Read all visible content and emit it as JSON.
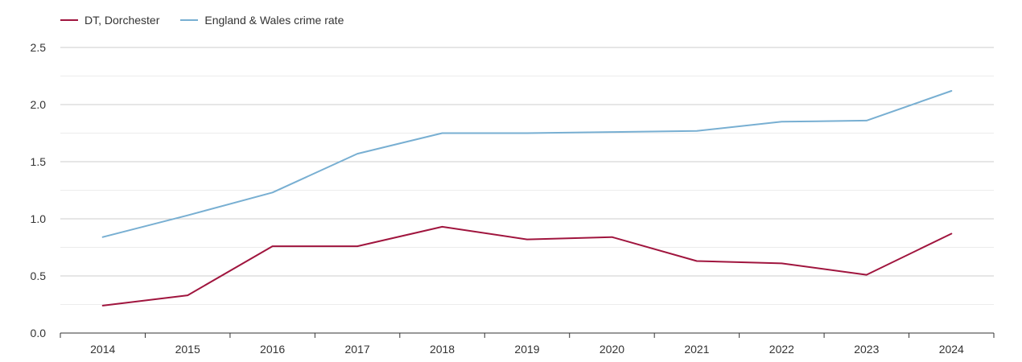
{
  "chart_data": {
    "type": "line",
    "title": "",
    "xlabel": "",
    "ylabel": "",
    "x": [
      "2014",
      "2015",
      "2016",
      "2017",
      "2018",
      "2019",
      "2020",
      "2021",
      "2022",
      "2023",
      "2024"
    ],
    "ylim": [
      0,
      2.5
    ],
    "yticks": [
      "0.0",
      "0.5",
      "1.0",
      "1.5",
      "2.0",
      "2.5"
    ],
    "grid": true,
    "legend_position": "top-left",
    "series": [
      {
        "name": "DT, Dorchester",
        "color": "#a0153e",
        "values": [
          0.24,
          0.33,
          0.76,
          0.76,
          0.93,
          0.82,
          0.84,
          0.63,
          0.61,
          0.51,
          0.87
        ]
      },
      {
        "name": "England & Wales crime rate",
        "color": "#78afd2",
        "values": [
          0.84,
          1.03,
          1.23,
          1.57,
          1.75,
          1.75,
          1.76,
          1.77,
          1.85,
          1.86,
          2.12
        ]
      }
    ]
  }
}
